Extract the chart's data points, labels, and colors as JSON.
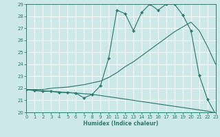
{
  "xlabel": "Humidex (Indice chaleur)",
  "bg_color": "#cce8e8",
  "grid_color": "#ffffff",
  "line_color": "#2d7a6e",
  "x_min": 0,
  "x_max": 23,
  "y_min": 20,
  "y_max": 29,
  "x_ticks": [
    0,
    1,
    2,
    3,
    4,
    5,
    6,
    7,
    8,
    9,
    10,
    11,
    12,
    13,
    14,
    15,
    16,
    17,
    18,
    19,
    20,
    21,
    22,
    23
  ],
  "y_ticks": [
    20,
    21,
    22,
    23,
    24,
    25,
    26,
    27,
    28,
    29
  ],
  "series_jagged_x": [
    0,
    1,
    2,
    3,
    4,
    5,
    6,
    7,
    8,
    9,
    10,
    11,
    12,
    13,
    14,
    15,
    16,
    17,
    18,
    19,
    20,
    21,
    22,
    23
  ],
  "series_jagged_y": [
    21.9,
    21.8,
    21.75,
    21.75,
    21.65,
    21.65,
    21.6,
    21.2,
    21.5,
    22.2,
    24.5,
    28.5,
    28.2,
    26.8,
    28.3,
    29.0,
    28.5,
    29.0,
    29.0,
    28.1,
    26.8,
    23.1,
    21.1,
    19.85
  ],
  "series_upper_x": [
    0,
    1,
    2,
    3,
    4,
    5,
    6,
    7,
    8,
    9,
    10,
    11,
    12,
    13,
    14,
    15,
    16,
    17,
    18,
    19,
    20,
    21,
    22,
    23
  ],
  "series_upper_y": [
    21.9,
    21.9,
    21.9,
    22.0,
    22.05,
    22.1,
    22.2,
    22.3,
    22.45,
    22.6,
    22.9,
    23.3,
    23.8,
    24.2,
    24.7,
    25.2,
    25.7,
    26.2,
    26.7,
    27.1,
    27.5,
    26.8,
    25.5,
    24.0
  ],
  "series_lower_x": [
    0,
    1,
    2,
    3,
    4,
    5,
    6,
    7,
    8,
    9,
    10,
    11,
    12,
    13,
    14,
    15,
    16,
    17,
    18,
    19,
    20,
    21,
    22,
    23
  ],
  "series_lower_y": [
    21.9,
    21.85,
    21.8,
    21.75,
    21.7,
    21.65,
    21.6,
    21.55,
    21.5,
    21.4,
    21.3,
    21.2,
    21.1,
    21.0,
    20.9,
    20.8,
    20.7,
    20.6,
    20.5,
    20.4,
    20.3,
    20.2,
    20.1,
    19.95
  ]
}
